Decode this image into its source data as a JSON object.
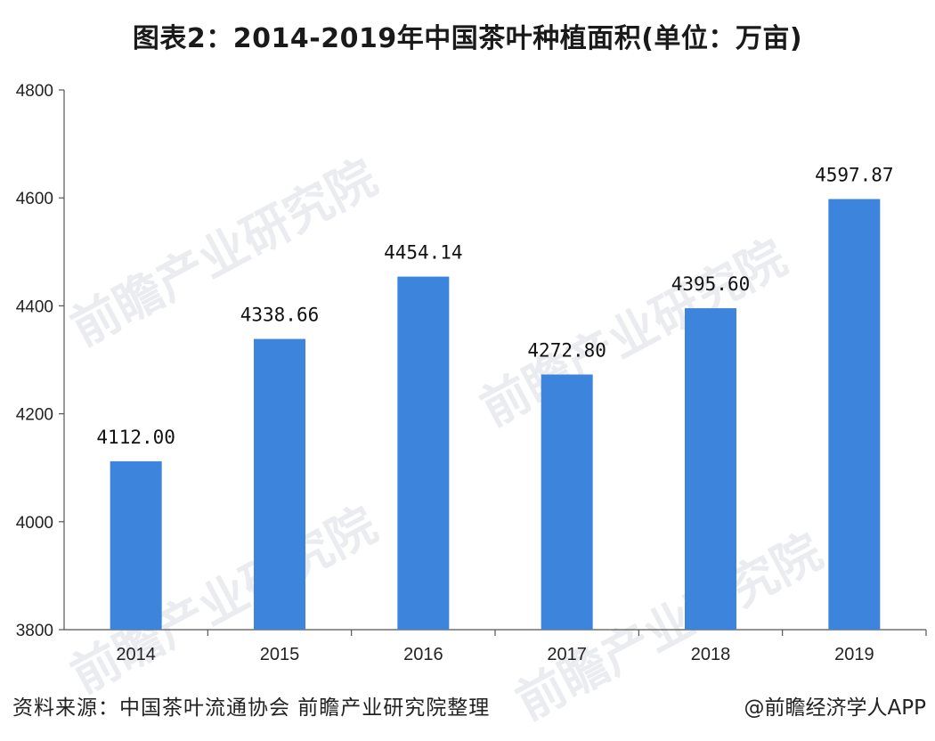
{
  "chart_data": {
    "type": "bar",
    "title": "图表2：2014-2019年中国茶叶种植面积(单位：万亩)",
    "categories": [
      "2014",
      "2015",
      "2016",
      "2017",
      "2018",
      "2019"
    ],
    "values": [
      4112.0,
      4338.66,
      4454.14,
      4272.8,
      4395.6,
      4597.87
    ],
    "value_labels": [
      "4112.00",
      "4338.66",
      "4454.14",
      "4272.80",
      "4395.60",
      "4597.87"
    ],
    "ylim": [
      3800,
      4800
    ],
    "yticks": [
      "4800",
      "4600",
      "4400",
      "4200",
      "4000",
      "3800"
    ],
    "bar_color": "#3d84dc",
    "grid": false
  },
  "footer": {
    "source": "资料来源：中国茶叶流通协会 前瞻产业研究院整理",
    "credit": "@前瞻经济学人APP"
  },
  "watermark": {
    "text": "前瞻产业研究院"
  }
}
